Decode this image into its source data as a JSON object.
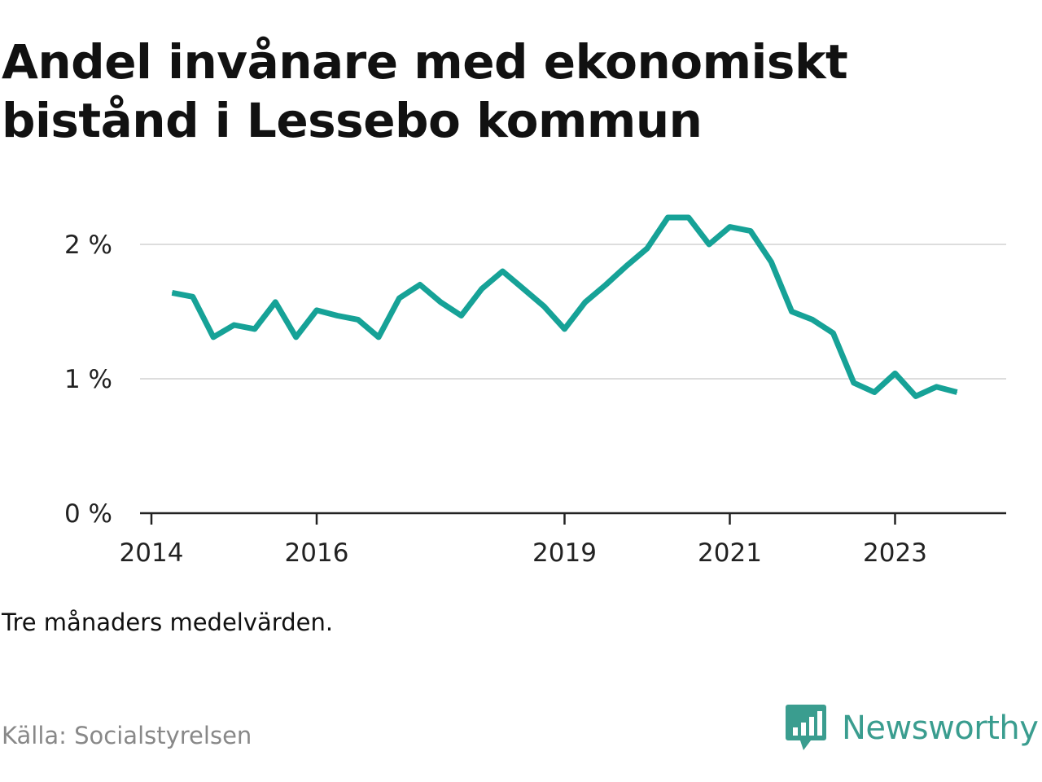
{
  "title": "Andel invånare med ekonomiskt bistånd i Lessebo kommun",
  "note": "Tre månaders medelvärden.",
  "source": "Källa: Socialstyrelsen",
  "brand": {
    "name": "Newsworthy",
    "icon": "bar-chart-speech-bubble-icon"
  },
  "colors": {
    "line": "#16a297",
    "grid": "#dddddd",
    "axis": "#222222",
    "brand": "#3a9d8f"
  },
  "chart_data": {
    "type": "line",
    "title": "Andel invånare med ekonomiskt bistånd i Lessebo kommun",
    "xlabel": "",
    "ylabel": "",
    "ylim": [
      0,
      2.4
    ],
    "xlim": [
      "2014-01",
      "2024-06"
    ],
    "yticks": [
      {
        "value": 0,
        "label": "0 %"
      },
      {
        "value": 1,
        "label": "1 %"
      },
      {
        "value": 2,
        "label": "2 %"
      }
    ],
    "xticks": [
      {
        "value": "2014-01",
        "label": "2014"
      },
      {
        "value": "2016-01",
        "label": "2016"
      },
      {
        "value": "2019-01",
        "label": "2019"
      },
      {
        "value": "2021-01",
        "label": "2021"
      },
      {
        "value": "2023-01",
        "label": "2023"
      }
    ],
    "grid": true,
    "series": [
      {
        "name": "",
        "points": [
          [
            "2014-04",
            1.64
          ],
          [
            "2014-07",
            1.61
          ],
          [
            "2014-10",
            1.31
          ],
          [
            "2015-01",
            1.4
          ],
          [
            "2015-04",
            1.37
          ],
          [
            "2015-07",
            1.57
          ],
          [
            "2015-10",
            1.31
          ],
          [
            "2016-01",
            1.51
          ],
          [
            "2016-04",
            1.47
          ],
          [
            "2016-07",
            1.44
          ],
          [
            "2016-10",
            1.31
          ],
          [
            "2017-01",
            1.6
          ],
          [
            "2017-04",
            1.7
          ],
          [
            "2017-07",
            1.57
          ],
          [
            "2017-10",
            1.47
          ],
          [
            "2018-01",
            1.67
          ],
          [
            "2018-04",
            1.8
          ],
          [
            "2018-07",
            1.67
          ],
          [
            "2018-10",
            1.54
          ],
          [
            "2019-01",
            1.37
          ],
          [
            "2019-04",
            1.57
          ],
          [
            "2019-07",
            1.7
          ],
          [
            "2019-10",
            1.84
          ],
          [
            "2020-01",
            1.97
          ],
          [
            "2020-04",
            2.2
          ],
          [
            "2020-07",
            2.2
          ],
          [
            "2020-10",
            2.0
          ],
          [
            "2021-01",
            2.13
          ],
          [
            "2021-04",
            2.1
          ],
          [
            "2021-07",
            1.87
          ],
          [
            "2021-10",
            1.5
          ],
          [
            "2022-01",
            1.44
          ],
          [
            "2022-04",
            1.34
          ],
          [
            "2022-07",
            0.97
          ],
          [
            "2022-10",
            0.9
          ],
          [
            "2023-01",
            1.04
          ],
          [
            "2023-04",
            0.87
          ],
          [
            "2023-07",
            0.94
          ],
          [
            "2023-10",
            0.9
          ]
        ]
      }
    ]
  }
}
